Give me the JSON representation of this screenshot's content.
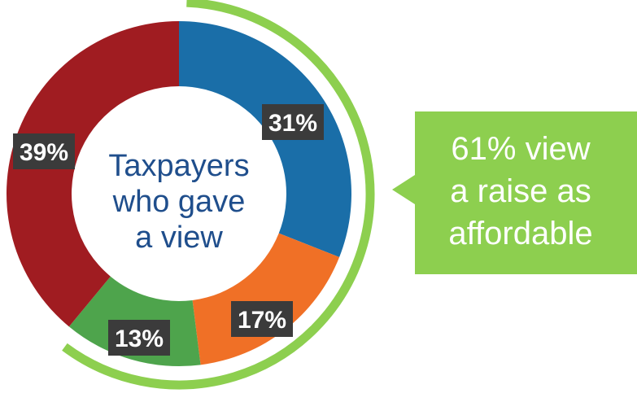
{
  "chart_data": {
    "type": "pie",
    "variant": "donut",
    "center_label_lines": [
      "Taxpayers",
      "who gave",
      "a view"
    ],
    "slices": [
      {
        "label": "31%",
        "value": 31,
        "color": "#1a6ea8"
      },
      {
        "label": "17%",
        "value": 17,
        "color": "#f07026"
      },
      {
        "label": "13%",
        "value": 13,
        "color": "#4ea44c"
      },
      {
        "label": "39%",
        "value": 39,
        "color": "#a01c21"
      }
    ],
    "highlight_arc": {
      "covers_percent": 61,
      "color": "#8dcf4f"
    }
  },
  "callout": {
    "lines": [
      "61% view",
      "a raise as",
      "affordable"
    ],
    "color": "#8dcf4f"
  }
}
